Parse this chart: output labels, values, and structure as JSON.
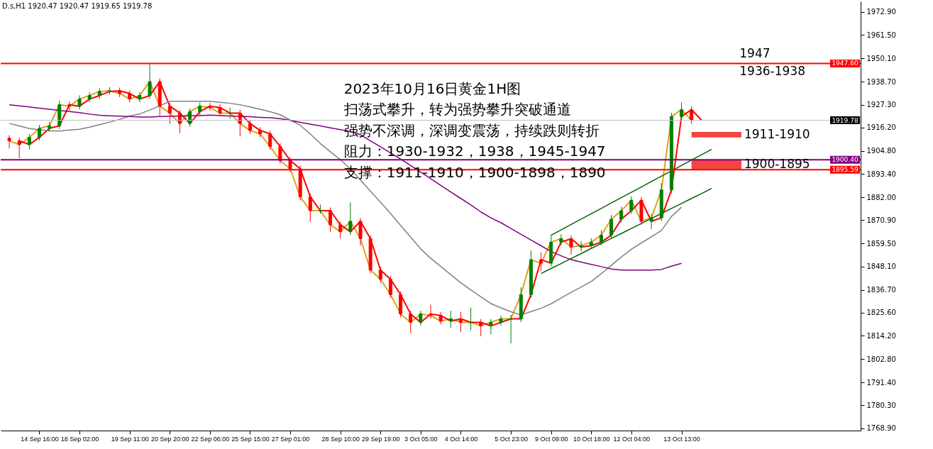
{
  "chart_data": {
    "type": "candlestick",
    "title": "2023年10月16日黄金1H图",
    "annotations": [
      "D.s,H1  1920.47 1920.47 1919.65 1919.78",
      "扫荡式攀升，转为强势攀升突破通道",
      "强势不深调，深调变震荡，持续跌则转折",
      "阻力：1930-1932，1938，1945-1947",
      "支撑：1911-1910，1900-1898，1890",
      "1947",
      "1936-1938"
    ],
    "categories": [
      null,
      null,
      null,
      "14 Sep 16:00",
      null,
      null,
      null,
      "18 Sep 02:00",
      null,
      null,
      null,
      null,
      "19 Sep 11:00",
      null,
      null,
      null,
      "20 Sep 20:00",
      null,
      null,
      null,
      "22 Sep 06:00",
      null,
      null,
      null,
      "25 Sep 15:00",
      null,
      null,
      null,
      "27 Sep 01:00",
      null,
      null,
      null,
      null,
      "28 Sep 10:00",
      null,
      null,
      null,
      "29 Sep 19:00",
      null,
      null,
      null,
      "3 Oct 05:00",
      null,
      null,
      null,
      "4 Oct 14:00",
      null,
      null,
      null,
      null,
      "5 Oct 23:00",
      null,
      null,
      null,
      "9 Oct 09:00",
      null,
      null,
      null,
      "10 Oct 18:00",
      null,
      null,
      null,
      "12 Oct 04:00",
      null,
      null,
      null,
      null,
      "13 Oct 13:00",
      null,
      null,
      null,
      null,
      null,
      null,
      null,
      null,
      null,
      null,
      null,
      null,
      null,
      null,
      null,
      null,
      null
    ],
    "ohlc": [
      [
        1911.0,
        1912.5,
        1906.0,
        1909.7
      ],
      [
        1909.7,
        1911.2,
        1901.1,
        1907.9
      ],
      [
        1907.9,
        1913.0,
        1905.5,
        1911.4
      ],
      [
        1911.4,
        1917.5,
        1910.0,
        1915.8
      ],
      [
        1915.8,
        1919.0,
        1914.2,
        1917.1
      ],
      [
        1917.1,
        1929.5,
        1915.5,
        1927.4
      ],
      [
        1927.4,
        1929.0,
        1924.5,
        1926.7
      ],
      [
        1926.7,
        1932.0,
        1925.0,
        1930.2
      ],
      [
        1930.2,
        1933.5,
        1928.6,
        1931.9
      ],
      [
        1931.9,
        1935.5,
        1930.3,
        1933.9
      ],
      [
        1933.9,
        1936.0,
        1932.4,
        1934.2
      ],
      [
        1934.2,
        1935.8,
        1931.2,
        1932.9
      ],
      [
        1932.9,
        1934.4,
        1928.6,
        1930.2
      ],
      [
        1930.2,
        1933.5,
        1928.6,
        1931.9
      ],
      [
        1931.9,
        1947.3,
        1930.3,
        1938.7
      ],
      [
        1938.7,
        1940.2,
        1922.0,
        1926.7
      ],
      [
        1926.7,
        1928.2,
        1918.0,
        1923.3
      ],
      [
        1923.3,
        1924.8,
        1913.5,
        1918.2
      ],
      [
        1918.2,
        1925.6,
        1916.6,
        1924.0
      ],
      [
        1924.0,
        1928.5,
        1922.4,
        1926.7
      ],
      [
        1926.7,
        1928.2,
        1924.4,
        1926.0
      ],
      [
        1926.0,
        1927.6,
        1921.7,
        1923.3
      ],
      [
        1923.3,
        1926.0,
        1920.5,
        1923.3
      ],
      [
        1923.3,
        1925.0,
        1912.0,
        1918.2
      ],
      [
        1918.2,
        1919.8,
        1913.2,
        1914.8
      ],
      [
        1914.8,
        1916.4,
        1911.5,
        1913.1
      ],
      [
        1913.1,
        1914.7,
        1905.3,
        1906.9
      ],
      [
        1906.9,
        1908.5,
        1898.5,
        1900.1
      ],
      [
        1900.1,
        1901.7,
        1894.4,
        1896.0
      ],
      [
        1896.0,
        1897.6,
        1880.7,
        1882.3
      ],
      [
        1882.3,
        1883.9,
        1870.0,
        1875.5
      ],
      [
        1875.5,
        1878.5,
        1873.9,
        1875.5
      ],
      [
        1875.5,
        1877.1,
        1865.0,
        1868.6
      ],
      [
        1868.6,
        1870.2,
        1862.0,
        1865.2
      ],
      [
        1865.2,
        1879.5,
        1863.6,
        1870.3
      ],
      [
        1870.3,
        1871.9,
        1858.4,
        1861.8
      ],
      [
        1861.8,
        1863.4,
        1844.8,
        1846.4
      ],
      [
        1846.4,
        1848.0,
        1840.3,
        1841.9
      ],
      [
        1841.9,
        1843.5,
        1832.8,
        1834.4
      ],
      [
        1834.4,
        1836.0,
        1823.3,
        1824.9
      ],
      [
        1824.9,
        1826.5,
        1815.6,
        1820.8
      ],
      [
        1820.8,
        1826.5,
        1819.2,
        1824.9
      ],
      [
        1824.9,
        1829.5,
        1822.6,
        1824.2
      ],
      [
        1824.2,
        1825.8,
        1819.8,
        1821.4
      ],
      [
        1821.4,
        1826.5,
        1818.0,
        1822.5
      ],
      [
        1822.5,
        1826.0,
        1816.0,
        1820.8
      ],
      [
        1820.8,
        1828.0,
        1817.0,
        1820.8
      ],
      [
        1820.8,
        1822.4,
        1814.0,
        1819.1
      ],
      [
        1819.1,
        1822.4,
        1815.0,
        1820.8
      ],
      [
        1820.8,
        1824.1,
        1819.2,
        1822.5
      ],
      [
        1822.5,
        1824.5,
        1810.5,
        1822.5
      ],
      [
        1822.5,
        1838.0,
        1820.9,
        1834.4
      ],
      [
        1834.4,
        1856.0,
        1832.8,
        1851.5
      ],
      [
        1851.5,
        1855.0,
        1846.0,
        1849.8
      ],
      [
        1849.8,
        1863.5,
        1848.2,
        1860.1
      ],
      [
        1860.1,
        1864.0,
        1858.5,
        1861.8
      ],
      [
        1861.8,
        1863.4,
        1854.0,
        1857.7
      ],
      [
        1857.7,
        1860.5,
        1855.5,
        1858.4
      ],
      [
        1858.4,
        1862.0,
        1856.8,
        1860.1
      ],
      [
        1860.1,
        1866.0,
        1858.5,
        1863.5
      ],
      [
        1863.5,
        1873.5,
        1861.9,
        1871.3
      ],
      [
        1871.3,
        1877.5,
        1869.7,
        1875.5
      ],
      [
        1875.5,
        1882.5,
        1873.9,
        1880.6
      ],
      [
        1880.6,
        1882.2,
        1868.7,
        1870.3
      ],
      [
        1870.3,
        1874.0,
        1866.5,
        1872.0
      ],
      [
        1872.0,
        1889.0,
        1870.4,
        1885.7
      ],
      [
        1885.7,
        1923.5,
        1884.1,
        1921.6
      ],
      [
        1921.6,
        1928.5,
        1920.0,
        1925.0
      ],
      [
        1925.0,
        1926.6,
        1918.0,
        1919.78
      ],
      null,
      null,
      null,
      null,
      null,
      null,
      null,
      null,
      null,
      null,
      null,
      null,
      null,
      null,
      null,
      null
    ],
    "series": [
      {
        "type": "line",
        "color": "#daa520",
        "values": [
          1909.7,
          1907.9,
          1911.4,
          1915.8,
          1917.1,
          1927.4,
          1926.7,
          1930.2,
          1931.9,
          1933.9,
          1934.2,
          1932.9,
          1930.2,
          1931.9,
          1938.7,
          1926.7,
          1923.3,
          1918.2,
          1924.0,
          1926.7,
          1926.0,
          1923.3,
          1923.3,
          1918.2,
          1914.8,
          1913.1,
          1906.9,
          1900.1,
          1896.0,
          1882.3,
          1875.5,
          1875.5,
          1868.6,
          1865.2,
          1870.3,
          1861.8,
          1846.4,
          1841.9,
          1834.4,
          1824.9,
          1820.8,
          1824.9,
          1824.2,
          1821.4,
          1822.5,
          1820.8,
          1820.8,
          1819.1,
          1820.8,
          1822.5,
          1822.5,
          1834.4,
          1851.5,
          1849.8,
          1860.1,
          1861.8,
          1857.7,
          1858.4,
          1860.1,
          1863.5,
          1871.3,
          1875.5,
          1880.6,
          1870.3,
          1872.0,
          1885.7,
          1921.6,
          1925.0,
          1919.8,
          null,
          null,
          null,
          null,
          null,
          null,
          null,
          null,
          null,
          null,
          null,
          null,
          null,
          null,
          null,
          null
        ]
      },
      {
        "type": "line",
        "color": "#ff0000",
        "values": [
          null,
          1909.7,
          1907.9,
          1911.4,
          1915.8,
          1917.1,
          1927.4,
          1926.7,
          1930.2,
          1931.9,
          1933.9,
          1934.2,
          1932.9,
          1930.2,
          1931.9,
          1938.7,
          1926.7,
          1923.3,
          1918.2,
          1924.0,
          1926.7,
          1926.0,
          1923.3,
          1923.3,
          1918.2,
          1914.8,
          1913.1,
          1906.9,
          1900.1,
          1896.0,
          1882.3,
          1875.5,
          1875.5,
          1868.6,
          1865.2,
          1870.3,
          1861.8,
          1846.4,
          1841.9,
          1834.4,
          1824.9,
          1820.8,
          1824.9,
          1824.2,
          1821.4,
          1822.5,
          1820.8,
          1820.8,
          1819.1,
          1820.8,
          1822.5,
          1822.5,
          1834.4,
          1851.5,
          1849.8,
          1860.1,
          1861.8,
          1857.7,
          1858.4,
          1860.1,
          1863.5,
          1871.3,
          1875.5,
          1880.6,
          1870.3,
          1872.0,
          1885.7,
          1921.6,
          1925.0,
          1919.8,
          null,
          null,
          null,
          null,
          null,
          null,
          null,
          null,
          null,
          null,
          null,
          null,
          null,
          null,
          null
        ]
      },
      {
        "type": "line",
        "color": "#808080",
        "values": [
          1918.2,
          1917.0,
          1915.7,
          1915.1,
          1914.7,
          1914.5,
          1915.0,
          1915.4,
          1916.4,
          1917.6,
          1918.9,
          1920.2,
          1921.9,
          1922.9,
          1924.8,
          1926.9,
          1929.1,
          1929.1,
          1929.1,
          1929.1,
          1929.1,
          1928.6,
          1928.1,
          1927.4,
          1926.3,
          1925.2,
          1924.0,
          1922.5,
          1919.9,
          1917.3,
          1913.1,
          1908.4,
          1904.4,
          1900.5,
          1895.9,
          1890.5,
          1885.1,
          1879.7,
          1874.1,
          1868.3,
          1862.6,
          1856.8,
          1852.2,
          1848.2,
          1844.2,
          1840.2,
          1836.7,
          1833.3,
          1830.0,
          1827.9,
          1826.0,
          1824.4,
          1826.1,
          1827.7,
          1829.9,
          1832.7,
          1835.5,
          1838.1,
          1840.8,
          1844.6,
          1848.7,
          1852.8,
          1856.6,
          1859.7,
          1862.7,
          1865.8,
          1872.7,
          1877.2,
          null,
          null,
          null,
          null,
          null,
          null,
          null,
          null,
          null,
          null,
          null,
          null,
          null,
          null,
          null,
          null,
          null
        ]
      },
      {
        "type": "line",
        "color": "#800080",
        "values": [
          1927.4,
          1926.8,
          1926.3,
          1925.7,
          1925.2,
          1924.6,
          1924.1,
          1923.5,
          1922.8,
          1922.2,
          1922.0,
          1921.8,
          1921.6,
          1921.4,
          1921.4,
          1921.6,
          1921.7,
          1921.9,
          1922.0,
          1922.1,
          1922.3,
          1922.1,
          1921.9,
          1921.7,
          1921.5,
          1921.2,
          1921.0,
          1920.6,
          1919.7,
          1918.8,
          1917.9,
          1917.0,
          1916.1,
          1915.2,
          1914.3,
          1912.7,
          1909.7,
          1906.8,
          1903.8,
          1900.8,
          1897.6,
          1894.4,
          1891.2,
          1887.9,
          1884.7,
          1881.5,
          1878.3,
          1874.9,
          1872.0,
          1869.6,
          1866.8,
          1863.9,
          1861.1,
          1858.3,
          1855.5,
          1853.4,
          1851.5,
          1850.3,
          1849.2,
          1848.1,
          1846.9,
          1846.4,
          1846.4,
          1846.4,
          1846.4,
          1846.7,
          1848.3,
          1849.7,
          null,
          null,
          null,
          null,
          null,
          null,
          null,
          null,
          null,
          null,
          null,
          null,
          null,
          null,
          null,
          null,
          null
        ]
      },
      {
        "type": "line",
        "color": "#006400",
        "values": [
          null,
          null,
          null,
          null,
          null,
          null,
          null,
          null,
          null,
          null,
          null,
          null,
          null,
          null,
          null,
          null,
          null,
          null,
          null,
          null,
          null,
          null,
          null,
          null,
          null,
          null,
          null,
          null,
          null,
          null,
          null,
          null,
          null,
          null,
          null,
          null,
          null,
          null,
          null,
          null,
          null,
          null,
          null,
          null,
          null,
          null,
          null,
          null,
          null,
          null,
          null,
          null,
          null,
          null,
          1863.5,
          1866.1,
          1868.8,
          1871.4,
          1874.0,
          1876.6,
          1879.3,
          1881.9,
          1884.5,
          1887.1,
          1889.8,
          1892.4,
          1895.0,
          1897.6,
          1900.3,
          1902.9,
          1905.5,
          null,
          null,
          null,
          null,
          null,
          null,
          null,
          null,
          null,
          null,
          null,
          null,
          null,
          null
        ]
      },
      {
        "type": "line",
        "color": "#006400",
        "values": [
          null,
          null,
          null,
          null,
          null,
          null,
          null,
          null,
          null,
          null,
          null,
          null,
          null,
          null,
          null,
          null,
          null,
          null,
          null,
          null,
          null,
          null,
          null,
          null,
          null,
          null,
          null,
          null,
          null,
          null,
          null,
          null,
          null,
          null,
          null,
          null,
          null,
          null,
          null,
          null,
          null,
          null,
          null,
          null,
          null,
          null,
          null,
          null,
          null,
          null,
          null,
          null,
          null,
          1844.7,
          1847.2,
          1849.6,
          1852.1,
          1854.5,
          1857.0,
          1859.4,
          1861.9,
          1864.3,
          1866.8,
          1869.2,
          1871.7,
          1874.1,
          1876.6,
          1879.0,
          1881.5,
          1883.9,
          1886.4,
          null,
          null,
          null,
          null,
          null,
          null,
          null,
          null,
          null,
          null,
          null,
          null,
          null,
          null
        ]
      }
    ],
    "ref_lines": [
      {
        "axis": "y",
        "value": 1947.6,
        "label": "1947.60",
        "color": "#ff0000"
      },
      {
        "axis": "y",
        "value": 1919.78,
        "label": "1919.78",
        "color": "#c0c0c0"
      },
      {
        "axis": "y",
        "value": 1900.4,
        "label": "1900.40",
        "color": "#800080"
      },
      {
        "axis": "y",
        "value": 1895.59,
        "label": "1895.59",
        "color": "#ff0000"
      }
    ],
    "bands": [
      {
        "axis": "y",
        "from": 1911.4,
        "to": 1914.1,
        "label": "1911-1910",
        "color": "#f44444"
      },
      {
        "axis": "y",
        "from": 1895.6,
        "to": 1900.4,
        "label": "1900-1895",
        "color": "#f44444"
      }
    ],
    "ylim": [
      1767.8,
      1978.0
    ],
    "yticks": [
      {
        "value": 1768.9,
        "label": "1768.90"
      },
      {
        "value": 1780.3,
        "label": "1780.30"
      },
      {
        "value": 1791.4,
        "label": "1791.40"
      },
      {
        "value": 1802.8,
        "label": "1802.80"
      },
      {
        "value": 1814.2,
        "label": "1814.20"
      },
      {
        "value": 1825.6,
        "label": "1825.60"
      },
      {
        "value": 1836.7,
        "label": "1836.70"
      },
      {
        "value": 1848.1,
        "label": "1848.10"
      },
      {
        "value": 1859.5,
        "label": "1859.50"
      },
      {
        "value": 1870.9,
        "label": "1870.90"
      },
      {
        "value": 1882,
        "label": "1882.00"
      },
      {
        "value": 1893.4,
        "label": "1893.40"
      },
      {
        "value": 1904.8,
        "label": "1904.80"
      },
      {
        "value": 1916.2,
        "label": "1916.20"
      },
      {
        "value": 1927.3,
        "label": "1927.30"
      },
      {
        "value": 1938.7,
        "label": "1938.70"
      },
      {
        "value": 1950.1,
        "label": "1950.10"
      },
      {
        "value": 1961.5,
        "label": "1961.50"
      },
      {
        "value": 1972.9,
        "label": "1972.90"
      }
    ]
  }
}
